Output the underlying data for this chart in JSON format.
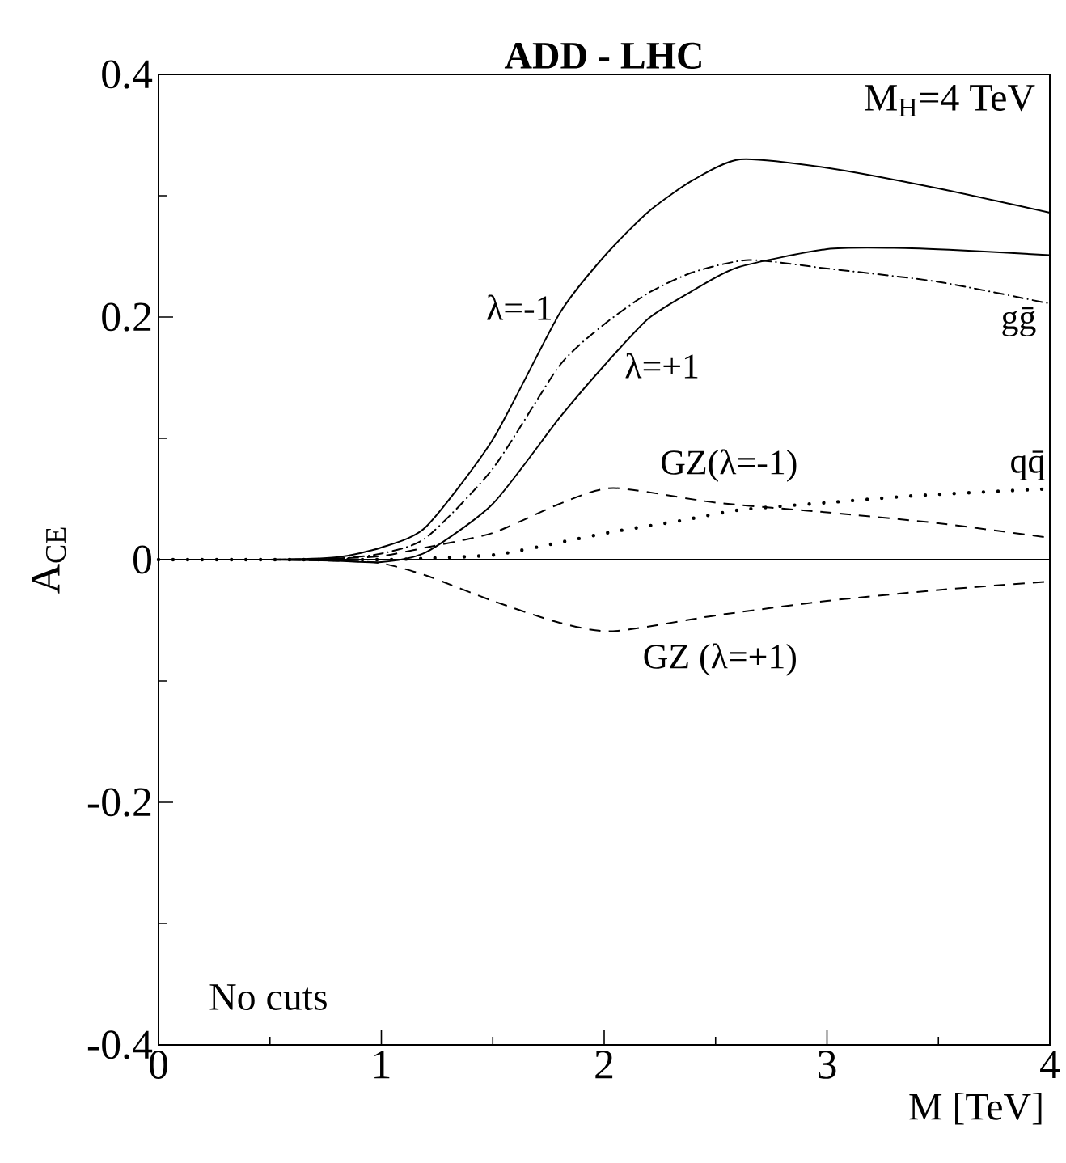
{
  "chart_data": {
    "type": "line",
    "title": "ADD - LHC",
    "xlabel": "M [TeV]",
    "ylabel": "A$_{CE}$",
    "xlim": [
      0,
      4
    ],
    "ylim": [
      -0.4,
      0.4
    ],
    "xticks": [
      0,
      1,
      2,
      3,
      4
    ],
    "yticks": [
      -0.4,
      -0.2,
      0,
      0.2,
      0.4
    ],
    "grid": false,
    "marker": "none",
    "ref_lines": [
      {
        "axis": "y",
        "value": 0,
        "color": "#000000",
        "line_style": "solid"
      }
    ],
    "annotations": [
      "M$_{H}$=4 TeV",
      "No cuts"
    ],
    "series": [
      {
        "name": "λ=-1",
        "color": "#000000",
        "line_style": "solid",
        "x": [
          0,
          0.5,
          0.8,
          1.0,
          1.2,
          1.5,
          1.8,
          2.0,
          2.2,
          2.4,
          2.61,
          3.0,
          3.5,
          4.0
        ],
        "values": [
          0,
          0,
          0.002,
          0.01,
          0.027,
          0.099,
          0.203,
          0.25,
          0.287,
          0.313,
          0.33,
          0.323,
          0.306,
          0.286
        ]
      },
      {
        "name": "λ=+1",
        "color": "#000000",
        "line_style": "solid",
        "x": [
          0,
          0.5,
          0.8,
          1.0,
          1.2,
          1.5,
          1.8,
          2.0,
          2.2,
          2.4,
          2.6,
          3.0,
          3.3,
          3.6,
          4.0
        ],
        "values": [
          0,
          0,
          -0.001,
          -0.002,
          0.006,
          0.046,
          0.117,
          0.16,
          0.199,
          0.222,
          0.241,
          0.256,
          0.257,
          0.255,
          0.251
        ]
      },
      {
        "name": "gḡ",
        "color": "#000000",
        "line_style": "dashdot",
        "x": [
          0,
          0.5,
          0.8,
          1.0,
          1.2,
          1.5,
          1.8,
          2.0,
          2.2,
          2.4,
          2.65,
          3.0,
          3.5,
          4.0
        ],
        "values": [
          0,
          0,
          0.001,
          0.005,
          0.018,
          0.075,
          0.16,
          0.194,
          0.22,
          0.237,
          0.247,
          0.24,
          0.229,
          0.211
        ]
      },
      {
        "name": "GZ(λ=-1)",
        "color": "#000000",
        "line_style": "dashed",
        "x": [
          0.5,
          0.8,
          1.0,
          1.2,
          1.5,
          1.8,
          2.04,
          2.5,
          3.0,
          3.5,
          4.0
        ],
        "values": [
          0,
          0.001,
          0.003,
          0.01,
          0.022,
          0.046,
          0.059,
          0.047,
          0.039,
          0.03,
          0.018
        ]
      },
      {
        "name": "qq̄",
        "color": "#000000",
        "line_style": "dotted",
        "x": [
          0,
          0.5,
          1.0,
          1.2,
          1.51,
          1.77,
          2.04,
          2.34,
          2.61,
          3.0,
          3.42,
          3.95,
          4.0
        ],
        "values": [
          0,
          0,
          0,
          0.001,
          0.004,
          0.013,
          0.023,
          0.032,
          0.041,
          0.047,
          0.053,
          0.058,
          0.058
        ]
      },
      {
        "name": "GZ (λ=+1)",
        "color": "#000000",
        "line_style": "dashed",
        "x": [
          0.5,
          0.8,
          1.0,
          1.2,
          1.5,
          1.8,
          2.04,
          2.5,
          3.0,
          3.5,
          4.0
        ],
        "values": [
          0,
          -0.001,
          -0.003,
          -0.013,
          -0.034,
          -0.052,
          -0.059,
          -0.046,
          -0.034,
          -0.025,
          -0.018
        ]
      }
    ]
  }
}
